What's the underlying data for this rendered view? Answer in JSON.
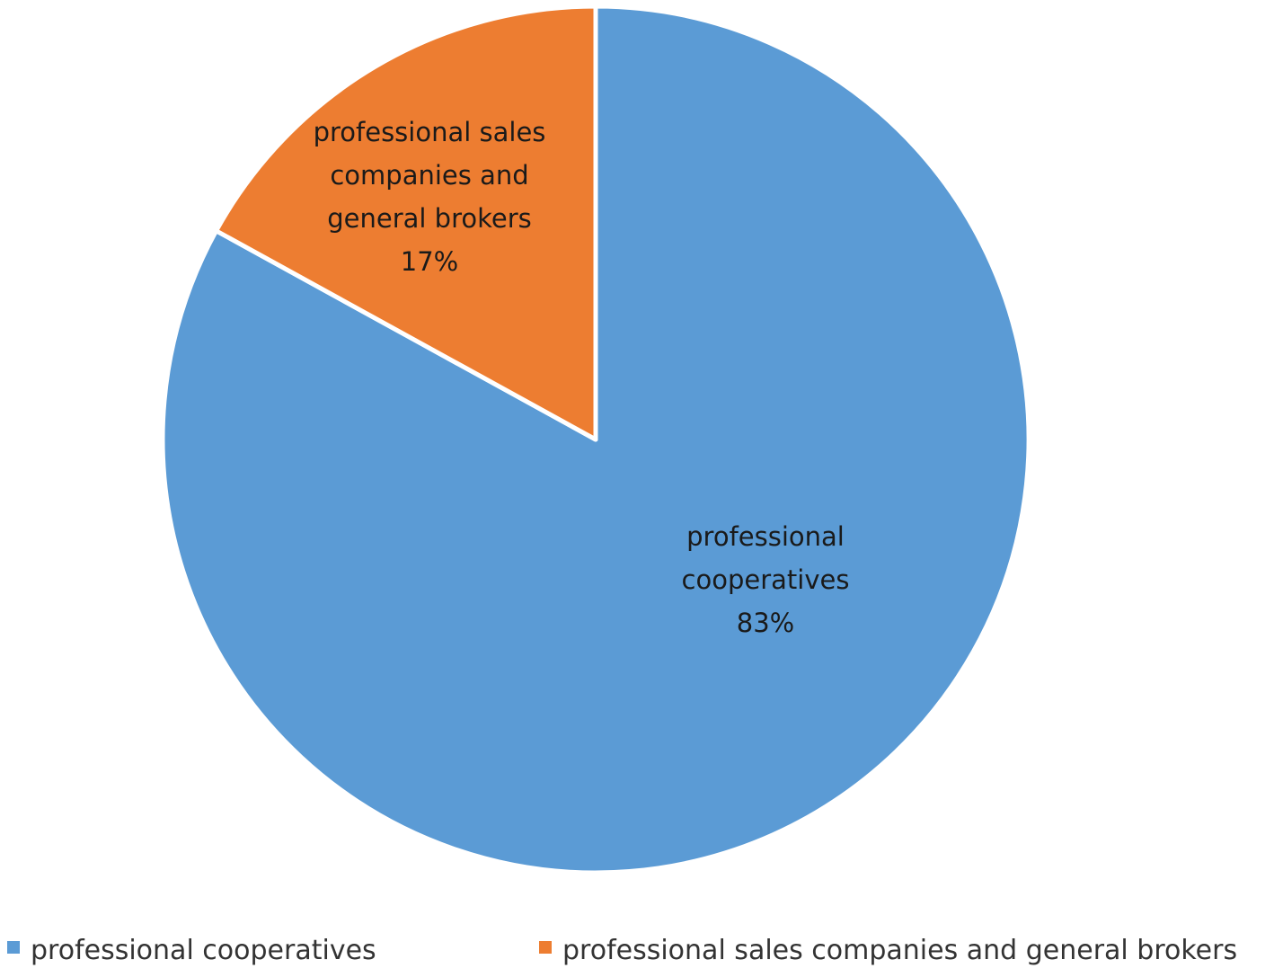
{
  "chart_data": {
    "type": "pie",
    "title": "",
    "slices": [
      {
        "name": "professional cooperatives",
        "value": 83,
        "label_lines": [
          "professional",
          "cooperatives",
          "83%"
        ],
        "color": "#5B9BD5"
      },
      {
        "name": "professional sales companies and general brokers",
        "value": 17,
        "label_lines": [
          "professional sales",
          "companies and",
          "general brokers",
          "17%"
        ],
        "color": "#ED7D31"
      }
    ],
    "legend": {
      "placement": "bottom",
      "entries": [
        "professional cooperatives",
        "professional sales companies and general brokers"
      ]
    }
  }
}
